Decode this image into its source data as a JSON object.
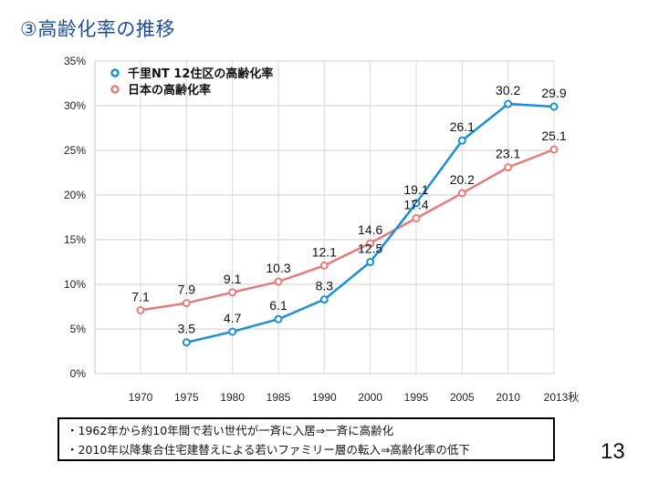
{
  "title": "③高齢化率の推移",
  "notes": [
    "・1962年から約10年間で若い世代が一斉に入居⇒一斉に高齢化",
    "・2010年以降集合住宅建替えによる若いファミリー層の転入⇒高齢化率の低下"
  ],
  "page_number": "13",
  "colors": {
    "senri": "#1a8fd6",
    "japan": "#e57c7c",
    "title": "#1f4d9c"
  },
  "chart_data": {
    "type": "line",
    "title": "",
    "xlabel": "",
    "ylabel": "",
    "categories": [
      "1970",
      "1975",
      "1980",
      "1985",
      "1990",
      "2000",
      "1995",
      "2005",
      "2010",
      "2013秋"
    ],
    "ylim": [
      0,
      35
    ],
    "yticks": [
      "0%",
      "5%",
      "10%",
      "15%",
      "20%",
      "25%",
      "30%",
      "35%"
    ],
    "ytick_values": [
      0,
      5,
      10,
      15,
      20,
      25,
      30,
      35
    ],
    "grid": true,
    "legend_position": "top-left",
    "series": [
      {
        "name": "千里NT 12住区の高齢化率",
        "color": "#1a8fd6",
        "values": [
          null,
          3.5,
          4.7,
          6.1,
          8.3,
          12.5,
          19.1,
          26.1,
          30.2,
          29.9
        ],
        "labels": [
          null,
          "3.5",
          "4.7",
          "6.1",
          "8.3",
          "12.5",
          "19.1",
          "26.1",
          "30.2",
          "29.9"
        ]
      },
      {
        "name": "日本の高齢化率",
        "color": "#e57c7c",
        "values": [
          7.1,
          7.9,
          9.1,
          10.3,
          12.1,
          14.6,
          17.4,
          20.2,
          23.1,
          25.1
        ],
        "labels": [
          "7.1",
          "7.9",
          "9.1",
          "10.3",
          "12.1",
          "14.6",
          "17.4",
          "20.2",
          "23.1",
          "25.1"
        ]
      }
    ]
  }
}
